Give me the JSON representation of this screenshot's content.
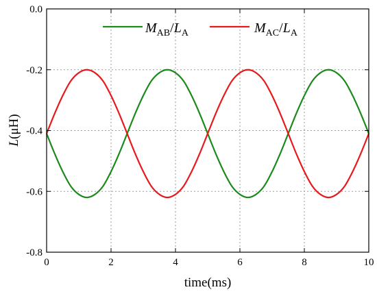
{
  "chart_data": {
    "type": "line",
    "xlabel": "time(ms)",
    "ylabel_main": "L",
    "ylabel_unit": "(μH)",
    "xlim": [
      0,
      10
    ],
    "ylim": [
      -0.8,
      0.0
    ],
    "xticks": [
      0,
      2,
      4,
      6,
      8,
      10
    ],
    "xtick_labels": [
      "0",
      "2",
      "4",
      "6",
      "8",
      "10"
    ],
    "yticks": [
      0.0,
      -0.2,
      -0.4,
      -0.6,
      -0.8
    ],
    "ytick_labels": [
      "0.0",
      "-0.2",
      "-0.4",
      "-0.6",
      "-0.8"
    ],
    "grid": true,
    "legend_position": "top",
    "series": [
      {
        "name_main": "M",
        "name_sub": "AB",
        "name_sep": "/",
        "name_main2": "L",
        "name_sub2": "A",
        "color": "#1b8a1b",
        "x": [
          0,
          0.25,
          0.5,
          0.75,
          1.0,
          1.25,
          1.5,
          1.75,
          2.0,
          2.25,
          2.5,
          2.75,
          3.0,
          3.25,
          3.5,
          3.75,
          4.0,
          4.25,
          4.5,
          4.75,
          5.0,
          5.25,
          5.5,
          5.75,
          6.0,
          6.25,
          6.5,
          6.75,
          7.0,
          7.25,
          7.5,
          7.75,
          8.0,
          8.25,
          8.5,
          8.75,
          9.0,
          9.25,
          9.5,
          9.75,
          10.0
        ],
        "y": [
          -0.41,
          -0.476,
          -0.535,
          -0.583,
          -0.61,
          -0.62,
          -0.61,
          -0.583,
          -0.535,
          -0.476,
          -0.41,
          -0.344,
          -0.285,
          -0.237,
          -0.21,
          -0.2,
          -0.21,
          -0.237,
          -0.285,
          -0.344,
          -0.41,
          -0.476,
          -0.535,
          -0.583,
          -0.61,
          -0.62,
          -0.61,
          -0.583,
          -0.535,
          -0.476,
          -0.41,
          -0.344,
          -0.285,
          -0.237,
          -0.21,
          -0.2,
          -0.21,
          -0.237,
          -0.285,
          -0.344,
          -0.41
        ]
      },
      {
        "name_main": "M",
        "name_sub": "AC",
        "name_sep": "/",
        "name_main2": "L",
        "name_sub2": "A",
        "color": "#e8191c",
        "x": [
          0,
          0.25,
          0.5,
          0.75,
          1.0,
          1.25,
          1.5,
          1.75,
          2.0,
          2.25,
          2.5,
          2.75,
          3.0,
          3.25,
          3.5,
          3.75,
          4.0,
          4.25,
          4.5,
          4.75,
          5.0,
          5.25,
          5.5,
          5.75,
          6.0,
          6.25,
          6.5,
          6.75,
          7.0,
          7.25,
          7.5,
          7.75,
          8.0,
          8.25,
          8.5,
          8.75,
          9.0,
          9.25,
          9.5,
          9.75,
          10.0
        ],
        "y": [
          -0.41,
          -0.344,
          -0.285,
          -0.237,
          -0.21,
          -0.2,
          -0.21,
          -0.237,
          -0.285,
          -0.344,
          -0.41,
          -0.476,
          -0.535,
          -0.583,
          -0.61,
          -0.62,
          -0.61,
          -0.583,
          -0.535,
          -0.476,
          -0.41,
          -0.344,
          -0.285,
          -0.237,
          -0.21,
          -0.2,
          -0.21,
          -0.237,
          -0.285,
          -0.344,
          -0.41,
          -0.476,
          -0.535,
          -0.583,
          -0.61,
          -0.62,
          -0.61,
          -0.583,
          -0.535,
          -0.476,
          -0.41
        ]
      }
    ]
  }
}
